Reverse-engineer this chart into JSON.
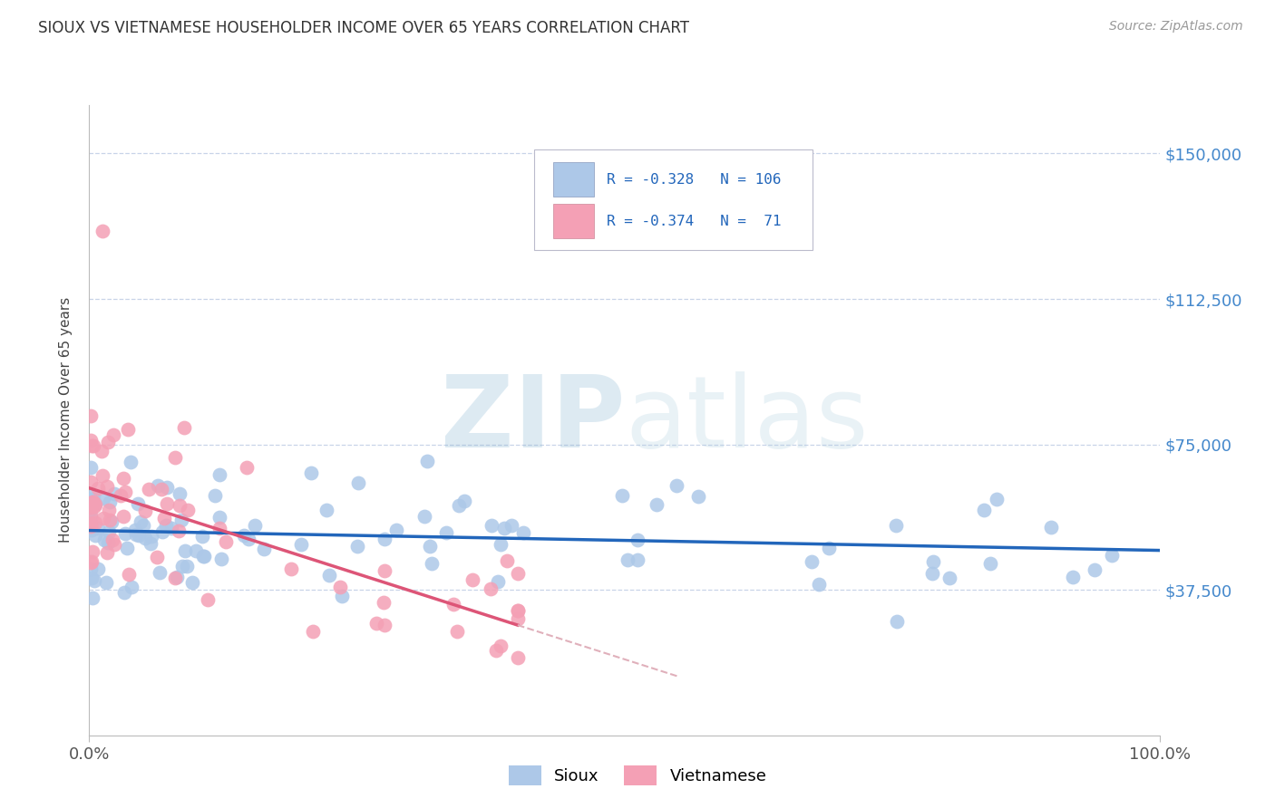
{
  "title": "SIOUX VS VIETNAMESE HOUSEHOLDER INCOME OVER 65 YEARS CORRELATION CHART",
  "source": "Source: ZipAtlas.com",
  "ylabel": "Householder Income Over 65 years",
  "xlim": [
    0.0,
    1.0
  ],
  "ylim": [
    0,
    162500
  ],
  "yticks": [
    37500,
    75000,
    112500,
    150000
  ],
  "ytick_labels": [
    "$37,500",
    "$75,000",
    "$112,500",
    "$150,000"
  ],
  "xtick_labels": [
    "0.0%",
    "100.0%"
  ],
  "legend_labels": [
    "Sioux",
    "Vietnamese"
  ],
  "sioux_R": -0.328,
  "sioux_N": 106,
  "viet_R": -0.374,
  "viet_N": 71,
  "sioux_color": "#adc8e8",
  "viet_color": "#f4a0b5",
  "sioux_line_color": "#2266bb",
  "viet_line_color": "#dd5577",
  "viet_ext_line_color": "#e0b0bb",
  "background_color": "#ffffff",
  "grid_color": "#c8d4e8",
  "watermark_zip_color": "#7aadcc",
  "watermark_atlas_color": "#aaccdd",
  "title_color": "#333333",
  "source_color": "#999999",
  "right_tick_color": "#4488cc",
  "legend_box_color": "#ddddee",
  "legend_text_color": "#2266bb"
}
